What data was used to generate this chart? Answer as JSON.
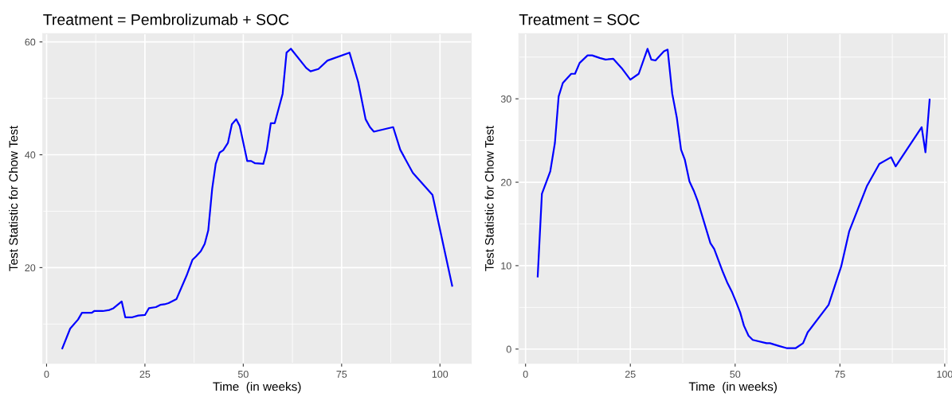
{
  "chart_data": [
    {
      "type": "line",
      "title": "Treatment = Pembrolizumab + SOC",
      "xlabel": "Time  (in weeks)",
      "ylabel": "Test Statistic for Chow Test",
      "grid": true,
      "xlim": [
        -0.95,
        107.95
      ],
      "ylim": [
        3.05,
        61.45
      ],
      "xticks": [
        0,
        25,
        50,
        75,
        100
      ],
      "yticks": [
        20,
        40,
        60
      ],
      "series": [
        {
          "color": "#0000ff",
          "x": [
            4,
            6,
            8,
            9,
            11.5,
            12.1,
            14.3,
            16,
            17,
            19.1,
            20,
            21.8,
            23.3,
            25,
            26,
            27.8,
            28.9,
            30,
            31,
            33,
            35.6,
            37.1,
            38,
            39.2,
            40.2,
            41.1,
            42.1,
            43,
            44,
            44.9,
            46.1,
            47.1,
            48.2,
            49.1,
            51,
            52,
            53,
            55.1,
            56,
            57,
            58,
            60,
            61,
            62.1,
            66,
            67.1,
            69.1,
            71.4,
            77,
            79.2,
            81.1,
            82.2,
            83.2,
            88.1,
            89.9,
            93.1,
            98.1,
            103.1
          ],
          "values": [
            5.7,
            9.2,
            10.8,
            12.0,
            12.0,
            12.3,
            12.3,
            12.5,
            12.8,
            14.0,
            11.2,
            11.2,
            11.5,
            11.6,
            12.8,
            13.0,
            13.4,
            13.5,
            13.7,
            14.4,
            18.6,
            21.4,
            22.0,
            22.9,
            24.2,
            26.6,
            34.0,
            38.4,
            40.4,
            40.8,
            42.1,
            45.4,
            46.3,
            45.1,
            38.9,
            38.9,
            38.5,
            38.4,
            40.9,
            45.6,
            45.6,
            50.8,
            58.1,
            58.8,
            55.4,
            54.8,
            55.2,
            56.7,
            58.1,
            52.9,
            46.3,
            44.9,
            44.1,
            44.9,
            40.9,
            36.8,
            32.9,
            16.8
          ]
        }
      ]
    },
    {
      "type": "line",
      "title": "Treatment = SOC",
      "xlabel": "Time  (in weeks)",
      "ylabel": "Test Statistic for Chow Test",
      "grid": true,
      "xlim": [
        -1.6,
        100.6
      ],
      "ylim": [
        -1.7,
        37.8
      ],
      "xticks": [
        0,
        25,
        50,
        75,
        100
      ],
      "yticks": [
        0,
        10,
        20,
        30
      ],
      "series": [
        {
          "color": "#0000ff",
          "x": [
            2.9,
            3.9,
            5.9,
            7.0,
            7.9,
            8.9,
            10.9,
            11.8,
            12.9,
            14.8,
            15.9,
            17.7,
            19.1,
            20.9,
            22.9,
            25.0,
            27.0,
            29.1,
            30.0,
            31.0,
            33.0,
            33.9,
            35.0,
            36.1,
            37.1,
            38.0,
            39.1,
            40.2,
            41.1,
            44.1,
            45.0,
            47.1,
            48.1,
            49.2,
            50.1,
            51.2,
            52.1,
            53.2,
            54.2,
            57.5,
            58.3,
            60.3,
            62.4,
            64.4,
            66.2,
            67.3,
            72.3,
            75.3,
            77.2,
            81.4,
            84.4,
            87.2,
            88.3,
            94.5,
            95.4,
            96.4
          ],
          "values": [
            8.7,
            18.6,
            21.3,
            24.7,
            30.3,
            31.9,
            33.0,
            33.0,
            34.3,
            35.2,
            35.2,
            34.9,
            34.7,
            34.8,
            33.7,
            32.3,
            33.0,
            36.0,
            34.7,
            34.6,
            35.7,
            35.9,
            30.6,
            27.7,
            23.9,
            22.7,
            20.1,
            18.9,
            17.7,
            12.7,
            12.0,
            9.2,
            8.0,
            6.9,
            5.8,
            4.4,
            2.8,
            1.6,
            1.1,
            0.7,
            0.7,
            0.4,
            0.1,
            0.1,
            0.7,
            2.0,
            5.3,
            9.9,
            14.1,
            19.5,
            22.2,
            23.0,
            21.9,
            26.6,
            23.6,
            29.9
          ]
        }
      ]
    }
  ]
}
